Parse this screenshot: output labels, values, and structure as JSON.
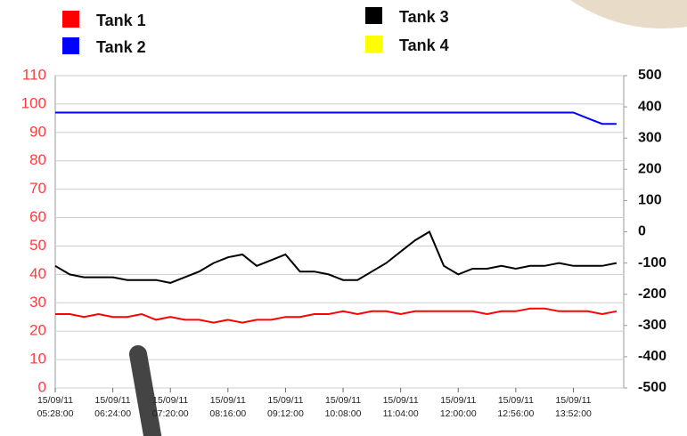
{
  "chart_data": {
    "type": "line",
    "categories": [
      "15/09/11\n05:28:00",
      null,
      null,
      null,
      "15/09/11\n06:24:00",
      null,
      null,
      null,
      "15/09/11\n07:20:00",
      null,
      null,
      null,
      "15/09/11\n08:16:00",
      null,
      null,
      null,
      "15/09/11\n09:12:00",
      null,
      null,
      null,
      "15/09/11\n10:08:00",
      null,
      null,
      null,
      "15/09/11\n11:04:00",
      null,
      null,
      null,
      "15/09/11\n12:00:00",
      null,
      null,
      null,
      "15/09/11\n12:56:00",
      null,
      null,
      null,
      "15/09/11\n13:52:00",
      null,
      null,
      null
    ],
    "series": [
      {
        "name": "Tank 1",
        "color": "#ff0000",
        "values": [
          26,
          26,
          25,
          26,
          25,
          25,
          26,
          24,
          25,
          24,
          24,
          23,
          24,
          23,
          24,
          24,
          25,
          25,
          26,
          26,
          27,
          26,
          27,
          27,
          26,
          27,
          27,
          27,
          27,
          27,
          26,
          27,
          27,
          28,
          28,
          27,
          27,
          27,
          26,
          27
        ]
      },
      {
        "name": "Tank 2",
        "color": "#0000ff",
        "values": [
          97,
          97,
          97,
          97,
          97,
          97,
          97,
          97,
          97,
          97,
          97,
          97,
          97,
          97,
          97,
          97,
          97,
          97,
          97,
          97,
          97,
          97,
          97,
          97,
          97,
          97,
          97,
          97,
          97,
          97,
          97,
          97,
          97,
          97,
          97,
          97,
          97,
          95,
          93,
          93
        ]
      },
      {
        "name": "Tank 3",
        "color": "#000000",
        "values": [
          43,
          40,
          39,
          39,
          39,
          38,
          38,
          38,
          37,
          39,
          41,
          44,
          46,
          47,
          43,
          45,
          47,
          41,
          41,
          40,
          38,
          38,
          41,
          44,
          48,
          52,
          55,
          43,
          40,
          42,
          42,
          43,
          42,
          43,
          43,
          44,
          43,
          43,
          43,
          44
        ]
      },
      {
        "name": "Tank 4",
        "color": "#ffff00",
        "values": [
          null,
          null,
          null,
          null,
          null,
          null,
          null,
          null,
          null,
          null,
          null,
          null,
          null,
          null,
          null,
          null,
          null,
          null,
          null,
          null,
          null,
          null,
          null,
          null,
          null,
          null,
          null,
          null,
          null,
          null,
          null,
          null,
          null,
          null,
          null,
          null,
          null,
          null,
          null,
          null
        ]
      }
    ],
    "ylim": [
      0,
      110
    ],
    "yticks": [
      0,
      10,
      20,
      30,
      40,
      50,
      60,
      70,
      80,
      90,
      100,
      110
    ],
    "y2lim": [
      -500,
      500
    ],
    "y2ticks": [
      -500,
      -400,
      -300,
      -200,
      -100,
      0,
      100,
      200,
      300,
      400,
      500
    ],
    "grid": true
  }
}
